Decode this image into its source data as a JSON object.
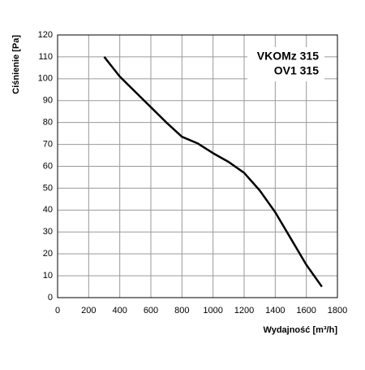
{
  "chart_data": {
    "type": "line",
    "annotations": [
      "VKOMz 315",
      "OV1 315"
    ],
    "x_label": "Wydajność [m³/h]",
    "y_label": "Ciśnienie [Pa]",
    "x": [
      300,
      400,
      500,
      600,
      700,
      800,
      900,
      1000,
      1100,
      1200,
      1300,
      1400,
      1500,
      1600,
      1700
    ],
    "series": [
      {
        "color": "#000000",
        "values": [
          110,
          101,
          94,
          87,
          80,
          73.5,
          70.5,
          66,
          62,
          57,
          49,
          39,
          27,
          15,
          5
        ]
      }
    ],
    "xlim": [
      0,
      1800
    ],
    "xticks": [
      0,
      200,
      400,
      600,
      800,
      1000,
      1200,
      1400,
      1600,
      1800
    ],
    "ylim": [
      0,
      120
    ],
    "yticks": [
      0,
      10,
      20,
      30,
      40,
      50,
      60,
      70,
      80,
      90,
      100,
      110,
      120
    ],
    "grid": true
  }
}
